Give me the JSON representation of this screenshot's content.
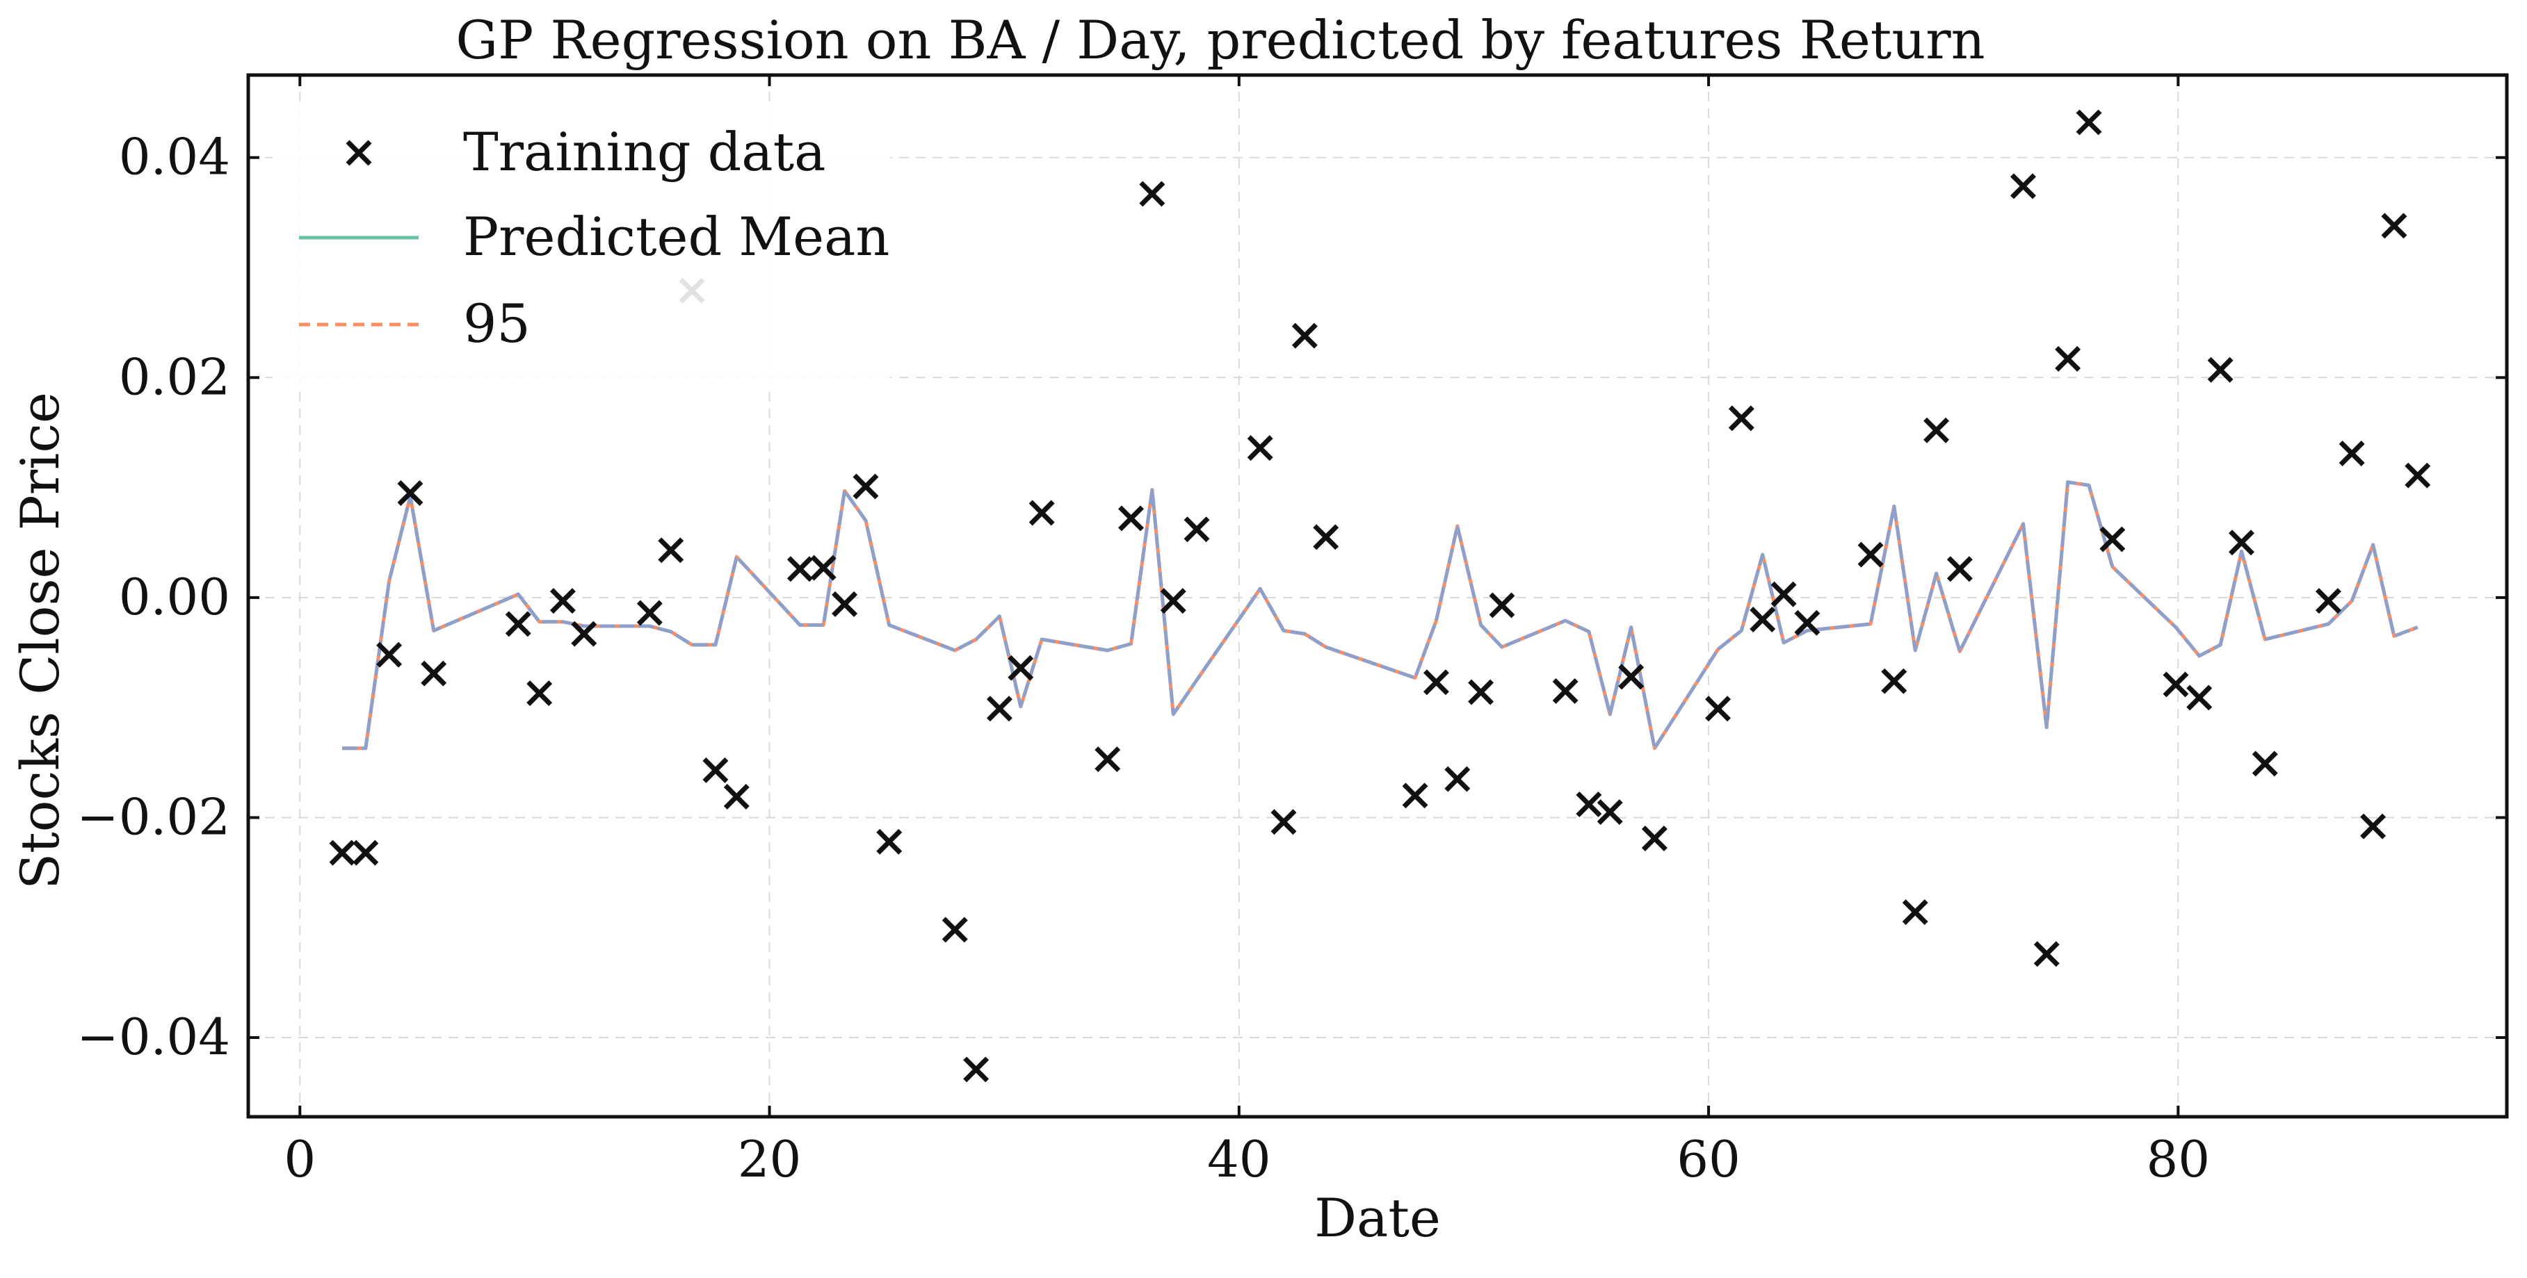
{
  "colors": {
    "training": "#111111",
    "mean": "#66c2a5",
    "ci": "#fc8d62",
    "mean_visible": "#8da0cb",
    "grid": "#d9d9d9",
    "axes": "#111111"
  },
  "chart_data": {
    "type": "line",
    "title": "GP Regression on BA / Day, predicted by features Return",
    "xlabel": "Date",
    "ylabel": "Stocks Close Price",
    "xlim": [
      -2.2,
      94
    ],
    "ylim": [
      -0.0472,
      0.0475
    ],
    "xticks": [
      0,
      20,
      40,
      60,
      80
    ],
    "xtick_labels": [
      "0",
      "20",
      "40",
      "60",
      "80"
    ],
    "yticks": [
      -0.04,
      -0.02,
      0.0,
      0.02,
      0.04
    ],
    "ytick_labels": [
      "−0.04",
      "−0.02",
      "0.00",
      "0.02",
      "0.04"
    ],
    "grid": true,
    "legend_position": "top-left",
    "legend": [
      "Training data",
      "Predicted Mean",
      "95"
    ],
    "series": [
      {
        "name": "Training data",
        "kind": "scatter",
        "marker": "x",
        "x": [
          1.8,
          2.8,
          3.8,
          4.7,
          5.7,
          9.3,
          10.2,
          11.2,
          12.1,
          14.9,
          15.8,
          16.7,
          17.7,
          18.6,
          21.3,
          22.3,
          23.2,
          24.1,
          25.1,
          27.9,
          28.8,
          29.8,
          30.7,
          31.6,
          34.4,
          35.4,
          36.3,
          37.2,
          38.2,
          40.9,
          41.9,
          42.8,
          43.7,
          47.5,
          48.4,
          49.3,
          50.3,
          51.2,
          53.9,
          54.9,
          55.8,
          56.7,
          57.7,
          60.4,
          61.4,
          62.3,
          63.2,
          64.2,
          66.9,
          67.9,
          68.8,
          69.7,
          70.7,
          73.4,
          74.4,
          75.3,
          76.2,
          77.2,
          79.9,
          80.9,
          81.8,
          82.7,
          83.7,
          86.4,
          87.4,
          88.3,
          89.2,
          90.2
        ],
        "y": [
          -0.0232,
          -0.0232,
          -0.0052,
          0.0095,
          -0.0069,
          -0.0024,
          -0.0087,
          -0.0003,
          -0.0033,
          -0.0014,
          0.0043,
          0.0279,
          -0.0157,
          -0.0181,
          0.0026,
          0.0027,
          -0.0006,
          0.0101,
          -0.0222,
          -0.0302,
          -0.0429,
          -0.0101,
          -0.0064,
          0.0077,
          -0.0147,
          0.0072,
          0.0367,
          -0.0003,
          0.0062,
          0.0136,
          -0.0204,
          0.0238,
          0.0055,
          -0.018,
          -0.0077,
          -0.0165,
          -0.0086,
          -0.0007,
          -0.0085,
          -0.0188,
          -0.0195,
          -0.0072,
          -0.0219,
          -0.0101,
          0.0163,
          -0.002,
          0.0003,
          -0.0023,
          0.0039,
          -0.0076,
          -0.0286,
          0.0152,
          0.0026,
          0.0374,
          -0.0324,
          0.0217,
          0.0432,
          0.0053,
          -0.0079,
          -0.0091,
          0.0207,
          0.005,
          -0.0151,
          -0.0003,
          0.0131,
          -0.0208,
          0.0338,
          0.0111
        ]
      },
      {
        "name": "Predicted Mean",
        "kind": "line",
        "x": [
          1.8,
          2.8,
          3.8,
          4.7,
          5.7,
          9.3,
          10.2,
          11.2,
          12.1,
          14.9,
          15.8,
          16.7,
          17.7,
          18.6,
          21.3,
          22.3,
          23.2,
          24.1,
          25.1,
          27.9,
          28.8,
          29.8,
          30.7,
          31.6,
          34.4,
          35.4,
          36.3,
          37.2,
          38.2,
          40.9,
          41.9,
          42.8,
          43.7,
          47.5,
          48.4,
          49.3,
          50.3,
          51.2,
          53.9,
          54.9,
          55.8,
          56.7,
          57.7,
          60.4,
          61.4,
          62.3,
          63.2,
          64.2,
          66.9,
          67.9,
          68.8,
          69.7,
          70.7,
          73.4,
          74.4,
          75.3,
          76.2,
          77.2,
          79.9,
          80.9,
          81.8,
          82.7,
          83.7,
          86.4,
          87.4,
          88.3,
          89.2,
          90.2
        ],
        "y": [
          -0.0137,
          -0.0137,
          0.0015,
          0.0092,
          -0.003,
          0.0003,
          -0.0022,
          -0.0022,
          -0.0026,
          -0.0026,
          -0.0031,
          -0.0043,
          -0.0043,
          0.0037,
          -0.0025,
          -0.0025,
          0.0097,
          0.007,
          -0.0025,
          -0.0048,
          -0.0038,
          -0.0017,
          -0.0099,
          -0.0038,
          -0.0048,
          -0.0042,
          0.0098,
          -0.0106,
          -0.0075,
          0.0008,
          -0.003,
          -0.0033,
          -0.0045,
          -0.0073,
          -0.0021,
          0.0065,
          -0.0025,
          -0.0045,
          -0.0021,
          -0.0031,
          -0.0106,
          -0.0027,
          -0.0137,
          -0.0047,
          -0.003,
          0.0039,
          -0.0041,
          -0.003,
          -0.0024,
          0.0083,
          -0.0048,
          0.0022,
          -0.0049,
          0.0067,
          -0.0118,
          0.0105,
          0.0102,
          0.0028,
          -0.0027,
          -0.0053,
          -0.0043,
          0.0042,
          -0.0038,
          -0.0024,
          -0.0003,
          0.0048,
          -0.0035,
          -0.0027
        ]
      }
    ]
  }
}
